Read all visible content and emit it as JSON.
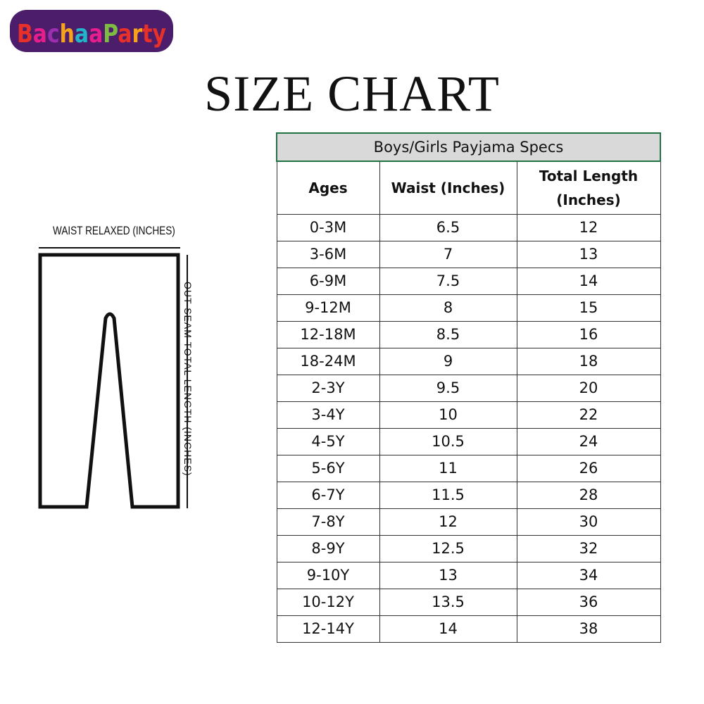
{
  "logo": {
    "text": "BachaaParty",
    "colors": [
      "#e8302b",
      "#e51e8c",
      "#9b2fae",
      "#22b5c9",
      "#f7a21b",
      "#7dbb42",
      "#4b1d6a"
    ]
  },
  "title": "SIZE CHART",
  "diagram": {
    "waist_label": "WAIST RELAXED (INCHES)",
    "length_label": "OUT SEAM TOTAL LENGTH (INCHES)"
  },
  "table": {
    "caption": "Boys/Girls Payjama Specs",
    "headers": [
      "Ages",
      "Waist (Inches)",
      "Total Length (Inches)"
    ],
    "rows": [
      [
        "0-3M",
        "6.5",
        "12"
      ],
      [
        "3-6M",
        "7",
        "13"
      ],
      [
        "6-9M",
        "7.5",
        "14"
      ],
      [
        "9-12M",
        "8",
        "15"
      ],
      [
        "12-18M",
        "8.5",
        "16"
      ],
      [
        "18-24M",
        "9",
        "18"
      ],
      [
        "2-3Y",
        "9.5",
        "20"
      ],
      [
        "3-4Y",
        "10",
        "22"
      ],
      [
        "4-5Y",
        "10.5",
        "24"
      ],
      [
        "5-6Y",
        "11",
        "26"
      ],
      [
        "6-7Y",
        "11.5",
        "28"
      ],
      [
        "7-8Y",
        "12",
        "30"
      ],
      [
        "8-9Y",
        "12.5",
        "32"
      ],
      [
        "9-10Y",
        "13",
        "34"
      ],
      [
        "10-12Y",
        "13.5",
        "36"
      ],
      [
        "12-14Y",
        "14",
        "38"
      ]
    ],
    "caption_border": "#217346"
  }
}
